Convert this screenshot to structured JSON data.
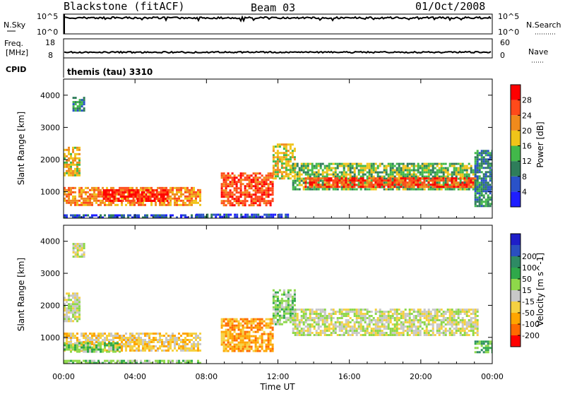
{
  "header": {
    "station": "Blackstone (fitACF)",
    "beam": "Beam 03",
    "date": "01/Oct/2008"
  },
  "aux_panels": {
    "nsky": {
      "label": "N.Sky",
      "ticks_left": [
        "10^5",
        "10^0"
      ],
      "right_label": "N.Search",
      "ticks_right": [
        "10^5",
        "10^0"
      ]
    },
    "freq": {
      "label_top": "Freq.",
      "label_unit": "[MHz]",
      "ticks_left": [
        "18",
        "8"
      ],
      "right_label": "Nave",
      "ticks_right": [
        "60",
        "0"
      ]
    },
    "cpid": {
      "label": "CPID",
      "value": "themis (tau) 3310"
    }
  },
  "colors": {
    "power": [
      "#1e1eff",
      "#2a52c8",
      "#2e7d5a",
      "#42b84a",
      "#f0c419",
      "#f08a1c",
      "#ff4a1a",
      "#ff0000"
    ],
    "velocity": [
      "#ff0000",
      "#ff6a00",
      "#ffa500",
      "#f5d142",
      "#c8c8c8",
      "#8ed84a",
      "#2fa84a",
      "#2e8a64",
      "#2a4fc0",
      "#1e1ec8"
    ]
  },
  "chart_data": [
    {
      "type": "heatmap",
      "name": "power",
      "xlabel": "",
      "ylabel": "Slant Range [km]",
      "x_ticks": [
        "00:00",
        "04:00",
        "08:00",
        "12:00",
        "16:00",
        "20:00",
        "00:00"
      ],
      "xlim_hours": [
        0,
        24
      ],
      "ylim_km": [
        180,
        4500
      ],
      "y_ticks": [
        1000,
        2000,
        3000,
        4000
      ],
      "colorbar": {
        "label": "Power [dB]",
        "ticks": [
          4,
          8,
          12,
          16,
          20,
          24,
          28
        ],
        "range": [
          0,
          32
        ]
      },
      "regions": [
        {
          "t0": 0.0,
          "t1": 0.9,
          "r0": 1500,
          "r1": 2400,
          "cls": 4
        },
        {
          "t0": 0.5,
          "t1": 1.2,
          "r0": 3500,
          "r1": 3950,
          "cls": 2
        },
        {
          "t0": 0.0,
          "t1": 7.6,
          "r0": 560,
          "r1": 1150,
          "cls": 5
        },
        {
          "t0": 2.2,
          "t1": 5.8,
          "r0": 720,
          "r1": 1080,
          "cls": 7
        },
        {
          "t0": 0.0,
          "t1": 7.6,
          "r0": 180,
          "r1": 300,
          "cls": 1
        },
        {
          "t0": 8.8,
          "t1": 11.7,
          "r0": 560,
          "r1": 1600,
          "cls": 6
        },
        {
          "t0": 7.4,
          "t1": 12.6,
          "r0": 180,
          "r1": 320,
          "cls": 1
        },
        {
          "t0": 11.7,
          "t1": 12.9,
          "r0": 1400,
          "r1": 2500,
          "cls": 4
        },
        {
          "t0": 12.8,
          "t1": 23.2,
          "r0": 1050,
          "r1": 1900,
          "cls": 3
        },
        {
          "t0": 13.5,
          "t1": 23.0,
          "r0": 1150,
          "r1": 1450,
          "cls": 6
        },
        {
          "t0": 23.0,
          "t1": 24.0,
          "r0": 550,
          "r1": 2300,
          "cls": 2
        }
      ]
    },
    {
      "type": "heatmap",
      "name": "velocity",
      "xlabel": "Time UT",
      "ylabel": "Slant Range [km]",
      "x_ticks": [
        "00:00",
        "04:00",
        "08:00",
        "12:00",
        "16:00",
        "20:00",
        "00:00"
      ],
      "xlim_hours": [
        0,
        24
      ],
      "ylim_km": [
        180,
        4500
      ],
      "y_ticks": [
        1000,
        2000,
        3000,
        4000
      ],
      "colorbar": {
        "label": "Velocity [m s^-1]",
        "ticks": [
          -200,
          -100,
          -50,
          -15,
          15,
          50,
          100,
          200
        ],
        "range": [
          -250,
          250
        ]
      },
      "regions": [
        {
          "t0": 0.0,
          "t1": 0.9,
          "r0": 1500,
          "r1": 2400,
          "cls": 4
        },
        {
          "t0": 0.5,
          "t1": 1.2,
          "r0": 3500,
          "r1": 3950,
          "cls": 4
        },
        {
          "t0": 0.0,
          "t1": 7.6,
          "r0": 560,
          "r1": 1150,
          "cls": 3
        },
        {
          "t0": 0.0,
          "t1": 3.2,
          "r0": 560,
          "r1": 850,
          "cls": 5
        },
        {
          "t0": 0.0,
          "t1": 7.6,
          "r0": 180,
          "r1": 300,
          "cls": 5
        },
        {
          "t0": 8.8,
          "t1": 11.7,
          "r0": 560,
          "r1": 1600,
          "cls": 2
        },
        {
          "t0": 11.7,
          "t1": 12.9,
          "r0": 1400,
          "r1": 2500,
          "cls": 5
        },
        {
          "t0": 12.8,
          "t1": 23.2,
          "r0": 1050,
          "r1": 1900,
          "cls": 4
        },
        {
          "t0": 23.0,
          "t1": 24.0,
          "r0": 550,
          "r1": 900,
          "cls": 6
        }
      ]
    }
  ]
}
